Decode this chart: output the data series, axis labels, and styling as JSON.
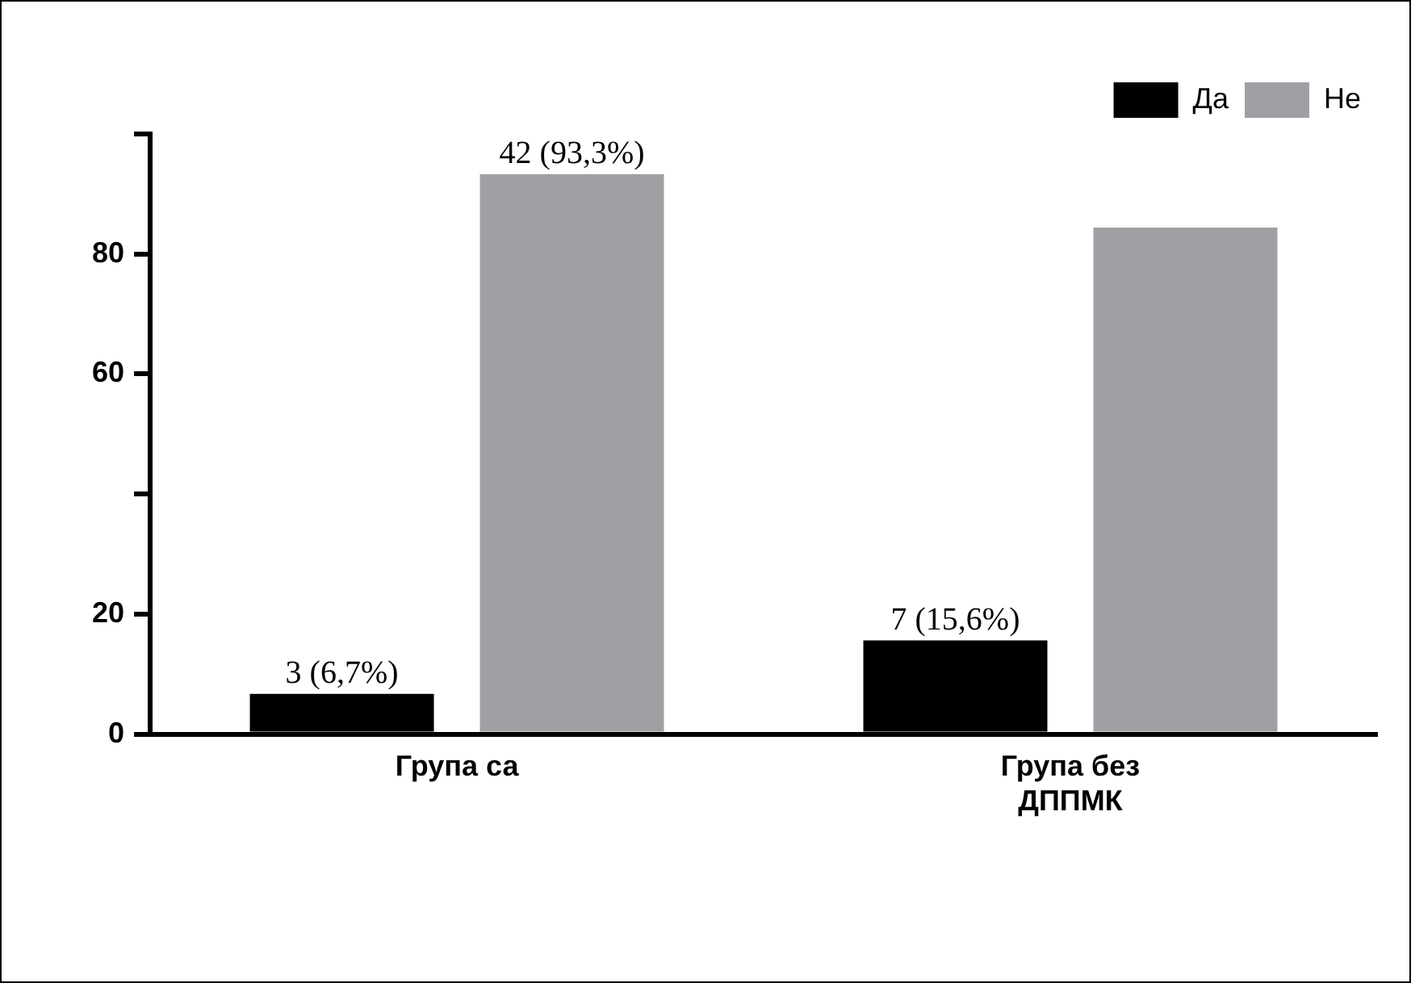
{
  "chart_data": {
    "type": "bar",
    "categories": [
      "Група са",
      "Група без\nДППМК"
    ],
    "series": [
      {
        "name": "Да",
        "color": "#000000",
        "values": [
          6.7,
          15.6
        ],
        "value_labels": [
          "3 (6,7%)",
          "7 (15,6%)"
        ]
      },
      {
        "name": "Не",
        "color": "#a0a0a4",
        "values": [
          93.3,
          84.4
        ],
        "value_labels": [
          "42 (93,3%)",
          null
        ]
      }
    ],
    "ylim": [
      0,
      100
    ],
    "yticks": [
      0,
      20,
      {
        "value": 40,
        "label": null
      },
      60,
      80,
      {
        "value": 100,
        "label": null
      }
    ],
    "grid": false,
    "legend": "top right"
  }
}
